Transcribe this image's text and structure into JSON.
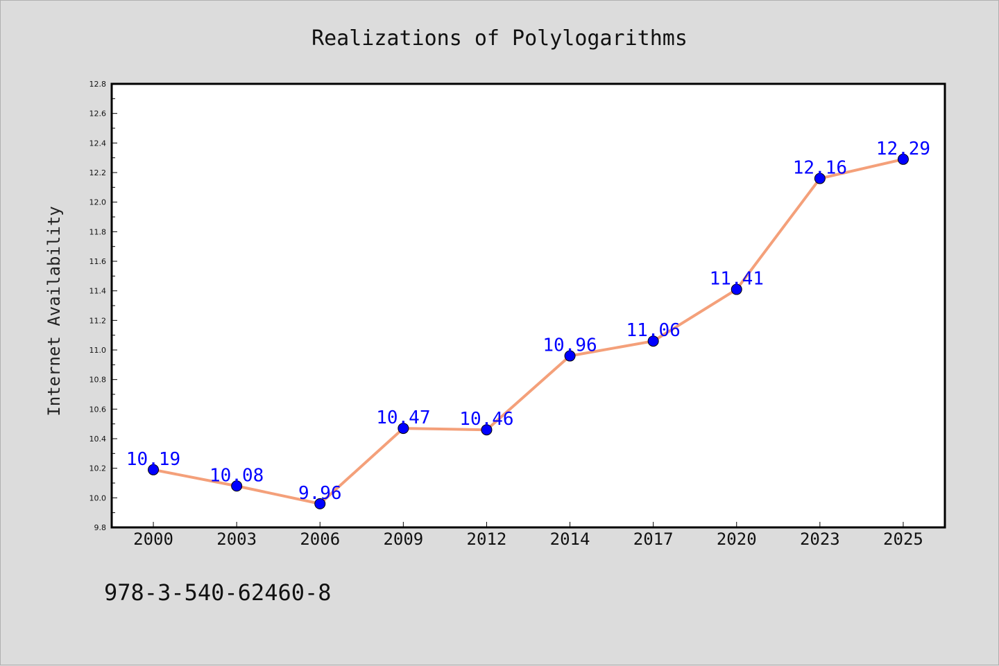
{
  "chart_data": {
    "type": "line",
    "title": "Realizations of Polylogarithms",
    "xlabel": "",
    "ylabel": "Internet Availability",
    "categories": [
      "2000",
      "2003",
      "2006",
      "2009",
      "2012",
      "2014",
      "2017",
      "2020",
      "2023",
      "2025"
    ],
    "series": [
      {
        "values": [
          10.19,
          10.08,
          9.96,
          10.47,
          10.46,
          10.96,
          11.06,
          11.41,
          12.16,
          12.29
        ],
        "labels": [
          "10.19",
          "10.08",
          "9.96",
          "10.47",
          "10.46",
          "10.96",
          "11.06",
          "11.41",
          "12.16",
          "12.29"
        ],
        "line_color": "#f4a07a",
        "marker_color": "#0000ff",
        "label_color": "#0000ff"
      }
    ],
    "ylim": [
      9.8,
      12.8
    ],
    "yticks": [
      "9.8",
      "10.0",
      "10.2",
      "10.4",
      "10.6",
      "10.8",
      "11.0",
      "11.2",
      "11.4",
      "11.6",
      "11.8",
      "12.0",
      "12.2",
      "12.4",
      "12.6",
      "12.8"
    ],
    "grid": false,
    "legend": "none"
  },
  "footer": {
    "text": "978-3-540-62460-8"
  },
  "colors": {
    "background": "#dcdcdc",
    "plot_background": "#ffffff",
    "axis": "#000000"
  }
}
